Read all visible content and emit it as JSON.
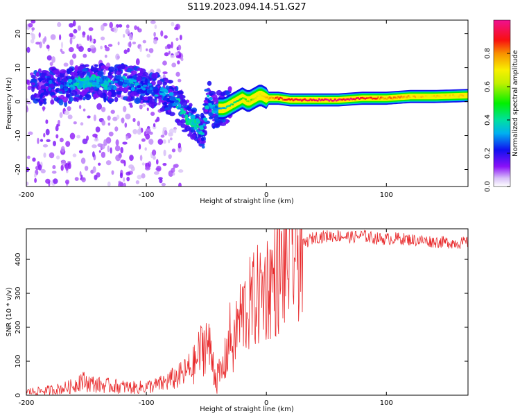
{
  "chart_data": [
    {
      "type": "heatmap",
      "title": "S119.2023.094.14.51.G27",
      "xlabel": "Height of straight line (km)",
      "ylabel": "Frequency (Hz)",
      "xlim": [
        -200,
        168
      ],
      "ylim": [
        -25,
        24
      ],
      "xticks": [
        -200,
        -100,
        0,
        100
      ],
      "yticks": [
        -20,
        -10,
        0,
        10,
        20
      ],
      "colorbar": {
        "label": "Normalized spectral amplitude",
        "range": [
          0.0,
          1.0
        ],
        "ticks": [
          "0.0",
          "0.2",
          "0.4",
          "0.6",
          "0.8"
        ],
        "colormap": "hsv_rainbow"
      },
      "ridge": {
        "x": [
          -190,
          -180,
          -170,
          -160,
          -150,
          -140,
          -130,
          -120,
          -110,
          -100,
          -90,
          -80,
          -75,
          -70,
          -65,
          -60,
          -55,
          -52,
          -48,
          -44,
          -40,
          -35,
          -30,
          -25,
          -20,
          -15,
          -10,
          -5,
          0,
          10,
          20,
          40,
          60,
          80,
          100,
          120,
          140,
          168
        ],
        "y": [
          4,
          5,
          4,
          5,
          6,
          6,
          5,
          6,
          5,
          4,
          3,
          1,
          0,
          -3,
          -5,
          -6,
          -8,
          -9,
          2,
          -3,
          -2,
          -2,
          -1,
          0,
          1,
          0,
          1,
          2,
          1,
          1,
          0.5,
          0.5,
          0.5,
          1,
          1,
          1.5,
          1.5,
          1.8
        ],
        "amplitude": [
          0.1,
          0.2,
          0.2,
          0.3,
          0.35,
          0.3,
          0.3,
          0.25,
          0.3,
          0.2,
          0.25,
          0.25,
          0.3,
          0.3,
          0.35,
          0.35,
          0.3,
          0.3,
          0.25,
          0.3,
          0.3,
          0.35,
          0.4,
          0.45,
          0.5,
          0.55,
          0.6,
          0.65,
          0.75,
          0.85,
          0.9,
          0.95,
          0.95,
          0.9,
          0.8,
          0.75,
          0.7,
          0.72
        ]
      }
    },
    {
      "type": "line",
      "xlabel": "Height of straight line (km)",
      "ylabel": "SNR (10 * v/v)",
      "xlim": [
        -200,
        168
      ],
      "ylim": [
        0,
        490
      ],
      "xticks": [
        -200,
        -100,
        0,
        100
      ],
      "yticks": [
        0,
        100,
        200,
        300,
        400
      ],
      "color": "#e8282a",
      "series": [
        {
          "x": [
            -200,
            -190,
            -180,
            -170,
            -160,
            -155,
            -150,
            -140,
            -130,
            -120,
            -110,
            -100,
            -90,
            -80,
            -70,
            -60,
            -55,
            -50,
            -45,
            -42,
            -38,
            -35,
            -30,
            -27,
            -25,
            -20,
            -15,
            -10,
            -5,
            0,
            5,
            10,
            13,
            15,
            20,
            25,
            30,
            35,
            40,
            50,
            60,
            70,
            80,
            90,
            100,
            110,
            120,
            130,
            140,
            150,
            160,
            168
          ],
          "values": [
            10,
            12,
            15,
            20,
            28,
            45,
            38,
            30,
            28,
            25,
            22,
            25,
            30,
            45,
            60,
            90,
            130,
            160,
            110,
            50,
            60,
            90,
            180,
            130,
            200,
            240,
            260,
            280,
            300,
            320,
            340,
            350,
            360,
            380,
            400,
            420,
            440,
            455,
            465,
            468,
            470,
            465,
            470,
            462,
            460,
            462,
            458,
            455,
            452,
            450,
            448,
            450
          ]
        }
      ]
    }
  ]
}
